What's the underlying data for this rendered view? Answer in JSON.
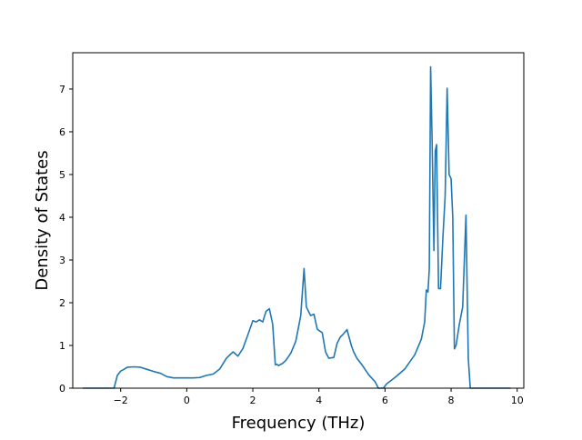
{
  "chart_data": {
    "type": "line",
    "title": "",
    "xlabel": "Frequency (THz)",
    "ylabel": "Density of States",
    "xlim": [
      -3.45,
      10.2
    ],
    "ylim": [
      0,
      7.85
    ],
    "xticks": [
      -2,
      0,
      2,
      4,
      6,
      8,
      10
    ],
    "yticks": [
      0,
      1,
      2,
      3,
      4,
      5,
      6,
      7
    ],
    "xtick_labels": [
      "−2",
      "0",
      "2",
      "4",
      "6",
      "8",
      "10"
    ],
    "ytick_labels": [
      "0",
      "1",
      "2",
      "3",
      "4",
      "5",
      "6",
      "7"
    ],
    "grid": false,
    "legend": "none",
    "series": [
      {
        "color": "#1f77b4",
        "x": [
          -3.15,
          -2.2,
          -2.1,
          -2.0,
          -1.9,
          -1.8,
          -1.6,
          -1.4,
          -1.2,
          -1.0,
          -0.8,
          -0.6,
          -0.4,
          -0.2,
          0.0,
          0.2,
          0.4,
          0.6,
          0.8,
          1.0,
          1.2,
          1.4,
          1.55,
          1.7,
          1.85,
          2.0,
          2.1,
          2.2,
          2.3,
          2.4,
          2.5,
          2.6,
          2.68,
          2.72,
          2.78,
          2.9,
          3.0,
          3.15,
          3.3,
          3.45,
          3.55,
          3.62,
          3.67,
          3.75,
          3.85,
          3.95,
          4.0,
          4.1,
          4.2,
          4.3,
          4.45,
          4.55,
          4.65,
          4.72,
          4.85,
          4.98,
          5.05,
          5.15,
          5.3,
          5.5,
          5.7,
          5.8,
          5.95,
          6.05,
          6.3,
          6.6,
          6.9,
          7.1,
          7.2,
          7.25,
          7.3,
          7.34,
          7.38,
          7.42,
          7.48,
          7.52,
          7.56,
          7.62,
          7.68,
          7.75,
          7.82,
          7.88,
          7.94,
          8.0,
          8.05,
          8.1,
          8.15,
          8.2,
          8.25,
          8.35,
          8.45,
          8.52,
          8.58,
          8.62,
          8.65,
          8.7,
          8.85,
          9.8
        ],
        "y": [
          0.0,
          0.0,
          0.3,
          0.4,
          0.44,
          0.49,
          0.5,
          0.49,
          0.44,
          0.39,
          0.35,
          0.27,
          0.24,
          0.24,
          0.24,
          0.24,
          0.25,
          0.3,
          0.33,
          0.45,
          0.7,
          0.85,
          0.75,
          0.93,
          1.25,
          1.58,
          1.55,
          1.6,
          1.55,
          1.8,
          1.86,
          1.5,
          0.55,
          0.56,
          0.53,
          0.58,
          0.65,
          0.82,
          1.1,
          1.7,
          2.8,
          1.9,
          1.82,
          1.7,
          1.73,
          1.38,
          1.35,
          1.3,
          0.85,
          0.7,
          0.72,
          1.05,
          1.2,
          1.25,
          1.37,
          1.0,
          0.85,
          0.7,
          0.55,
          0.32,
          0.15,
          0.0,
          0.0,
          0.1,
          0.25,
          0.45,
          0.78,
          1.15,
          1.55,
          2.3,
          2.25,
          2.8,
          7.52,
          6.0,
          3.22,
          5.55,
          5.7,
          2.33,
          2.33,
          3.5,
          4.5,
          7.02,
          5.0,
          4.9,
          4.0,
          0.92,
          1.0,
          1.25,
          1.5,
          1.9,
          4.05,
          0.7,
          0.0,
          0.0,
          0.0,
          0.0,
          0.0,
          0.0
        ]
      }
    ]
  }
}
